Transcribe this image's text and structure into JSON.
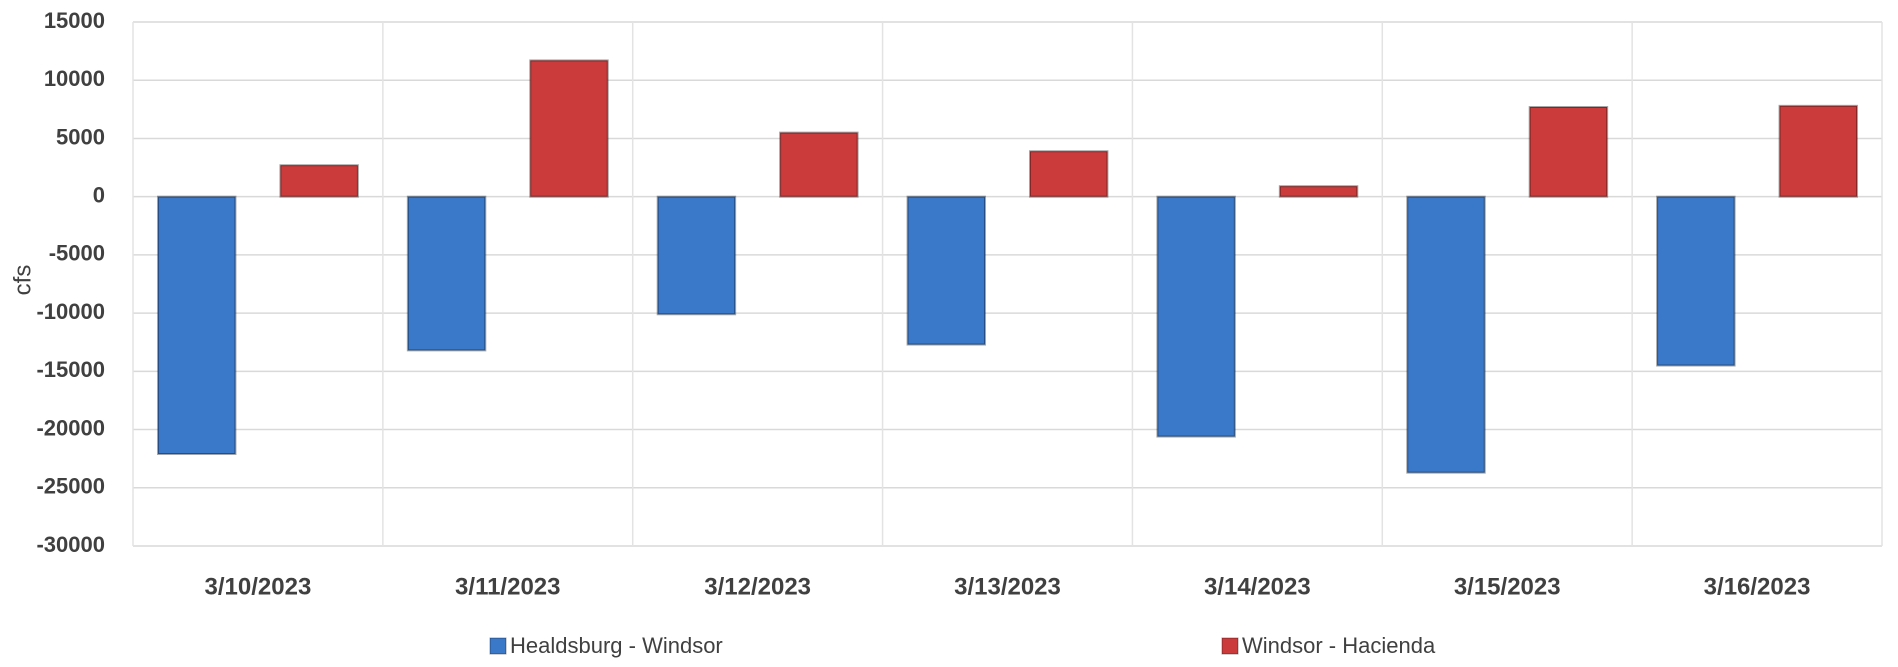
{
  "chart_data": {
    "type": "bar",
    "y_label": "cfs",
    "categories": [
      "3/10/2023",
      "3/11/2023",
      "3/12/2023",
      "3/13/2023",
      "3/14/2023",
      "3/15/2023",
      "3/16/2023"
    ],
    "series": [
      {
        "name": "Healdsburg - Windsor",
        "color": "#3a78c9",
        "values": [
          -22100,
          -13200,
          -10100,
          -12700,
          -20600,
          -23700,
          -14500
        ]
      },
      {
        "name": "Windsor - Hacienda",
        "color": "#cc3b3b",
        "values": [
          2700,
          11700,
          5500,
          3900,
          900,
          7700,
          7800
        ]
      }
    ],
    "ylim": [
      -30000,
      15000
    ],
    "yticks": [
      -30000,
      -25000,
      -20000,
      -15000,
      -10000,
      -5000,
      0,
      5000,
      10000,
      15000
    ],
    "grid": true,
    "legend": "bottom"
  }
}
